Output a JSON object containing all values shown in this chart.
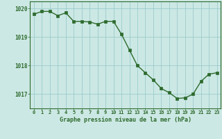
{
  "x": [
    0,
    1,
    2,
    3,
    4,
    5,
    6,
    7,
    8,
    9,
    10,
    11,
    12,
    13,
    14,
    15,
    16,
    17,
    18,
    19,
    20,
    21,
    22,
    23
  ],
  "y": [
    1019.8,
    1019.9,
    1019.9,
    1019.75,
    1019.85,
    1019.55,
    1019.55,
    1019.53,
    1019.45,
    1019.55,
    1019.55,
    1019.1,
    1018.55,
    1018.0,
    1017.75,
    1017.5,
    1017.2,
    1017.05,
    1016.85,
    1016.87,
    1017.0,
    1017.45,
    1017.7,
    1017.75
  ],
  "line_color": "#2d6a2d",
  "marker_color": "#2d6a2d",
  "bg_color": "#cce8e4",
  "grid_color_major": "#99cccc",
  "grid_color_minor": "#b8ddd8",
  "xlabel": "Graphe pression niveau de la mer (hPa)",
  "xlabel_color": "#2d6a2d",
  "tick_color": "#2d6a2d",
  "spine_color": "#2d6a2d",
  "ylim": [
    1016.5,
    1020.25
  ],
  "yticks": [
    1017,
    1018,
    1019,
    1020
  ],
  "xlim": [
    -0.5,
    23.5
  ],
  "xticks": [
    0,
    1,
    2,
    3,
    4,
    5,
    6,
    7,
    8,
    9,
    10,
    11,
    12,
    13,
    14,
    15,
    16,
    17,
    18,
    19,
    20,
    21,
    22,
    23
  ]
}
